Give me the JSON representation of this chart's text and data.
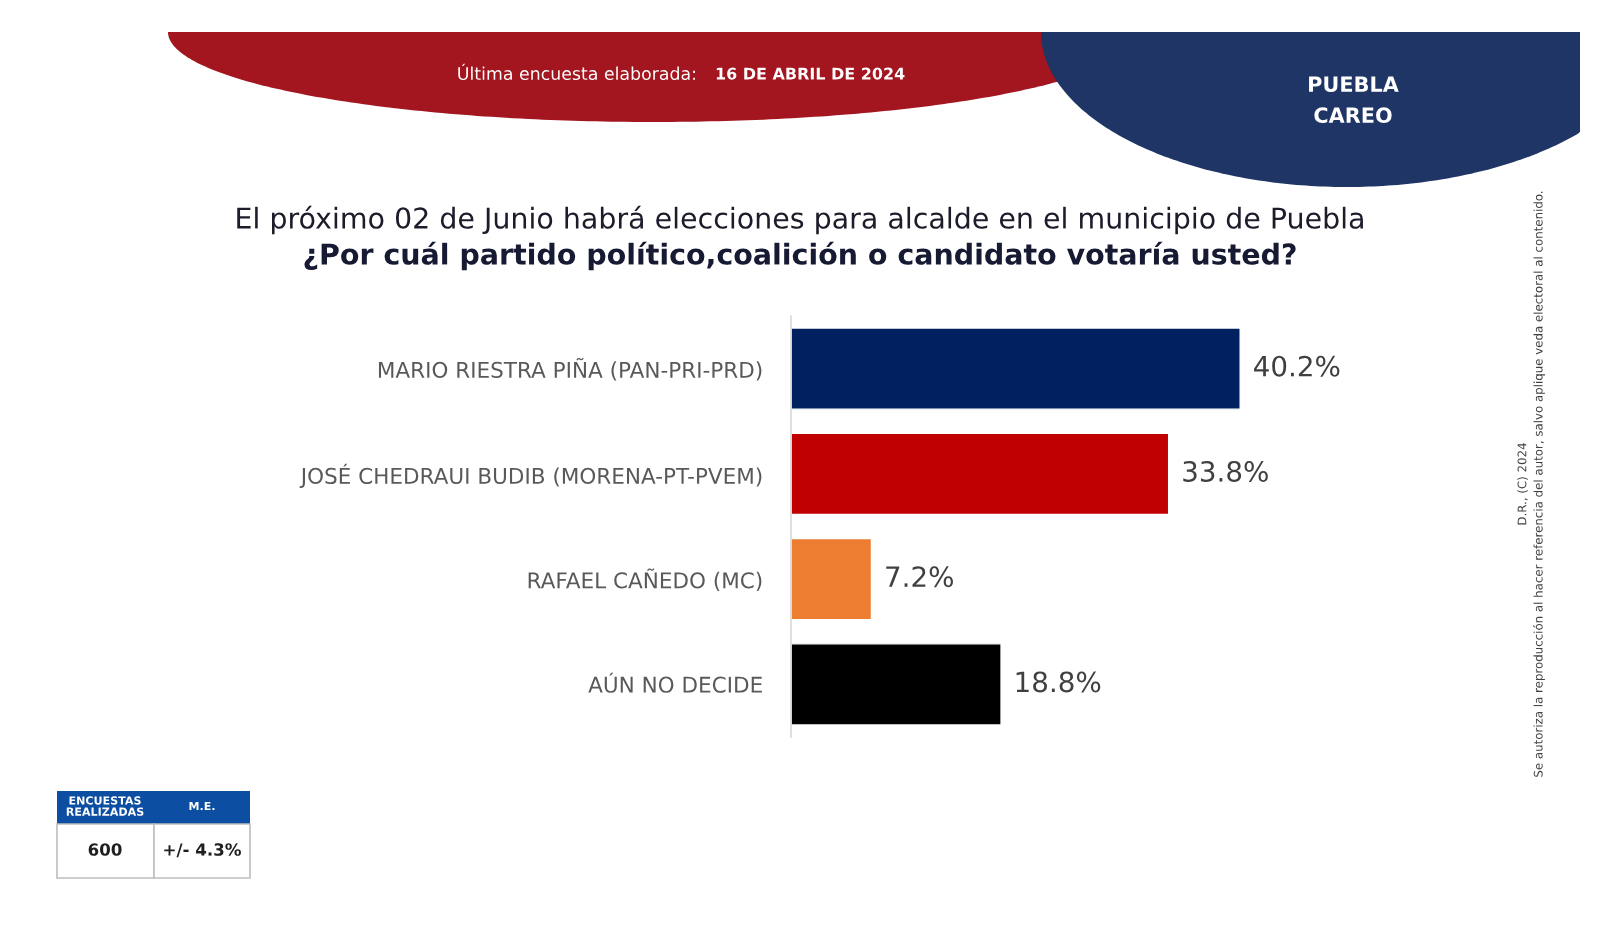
{
  "chart_data": {
    "type": "bar",
    "orientation": "horizontal",
    "title": "El próximo 02 de Junio habrá elecciones para alcalde en el municipio de Puebla",
    "subtitle": "¿Por cuál partido político,coalición o candidato votaría usted?",
    "categories": [
      "MARIO RIESTRA PIÑA (PAN-PRI-PRD)",
      "JOSÉ CHEDRAUI BUDIB (MORENA-PT-PVEM)",
      "RAFAEL CAÑEDO (MC)",
      "AÚN NO DECIDE"
    ],
    "values": [
      40.2,
      33.8,
      7.2,
      18.8
    ],
    "colors": [
      "#002060",
      "#c00000",
      "#ed7d31",
      "#000000"
    ],
    "value_labels": [
      "40.2%",
      "33.8%",
      "7.2%",
      "18.8%"
    ],
    "annotations": [
      "Última encuesta elaborada:",
      "16 DE ABRIL DE 2024",
      "PUEBLA",
      "CAREO",
      "ENCUESTAS\nREALIZADAS",
      "M.E.",
      "600",
      "+/- 4.3%",
      "D.R., (C) 2024",
      "Se autoriza la reproducción al hacer referencia del autor, salvo aplique veda electoral al contenido."
    ]
  }
}
